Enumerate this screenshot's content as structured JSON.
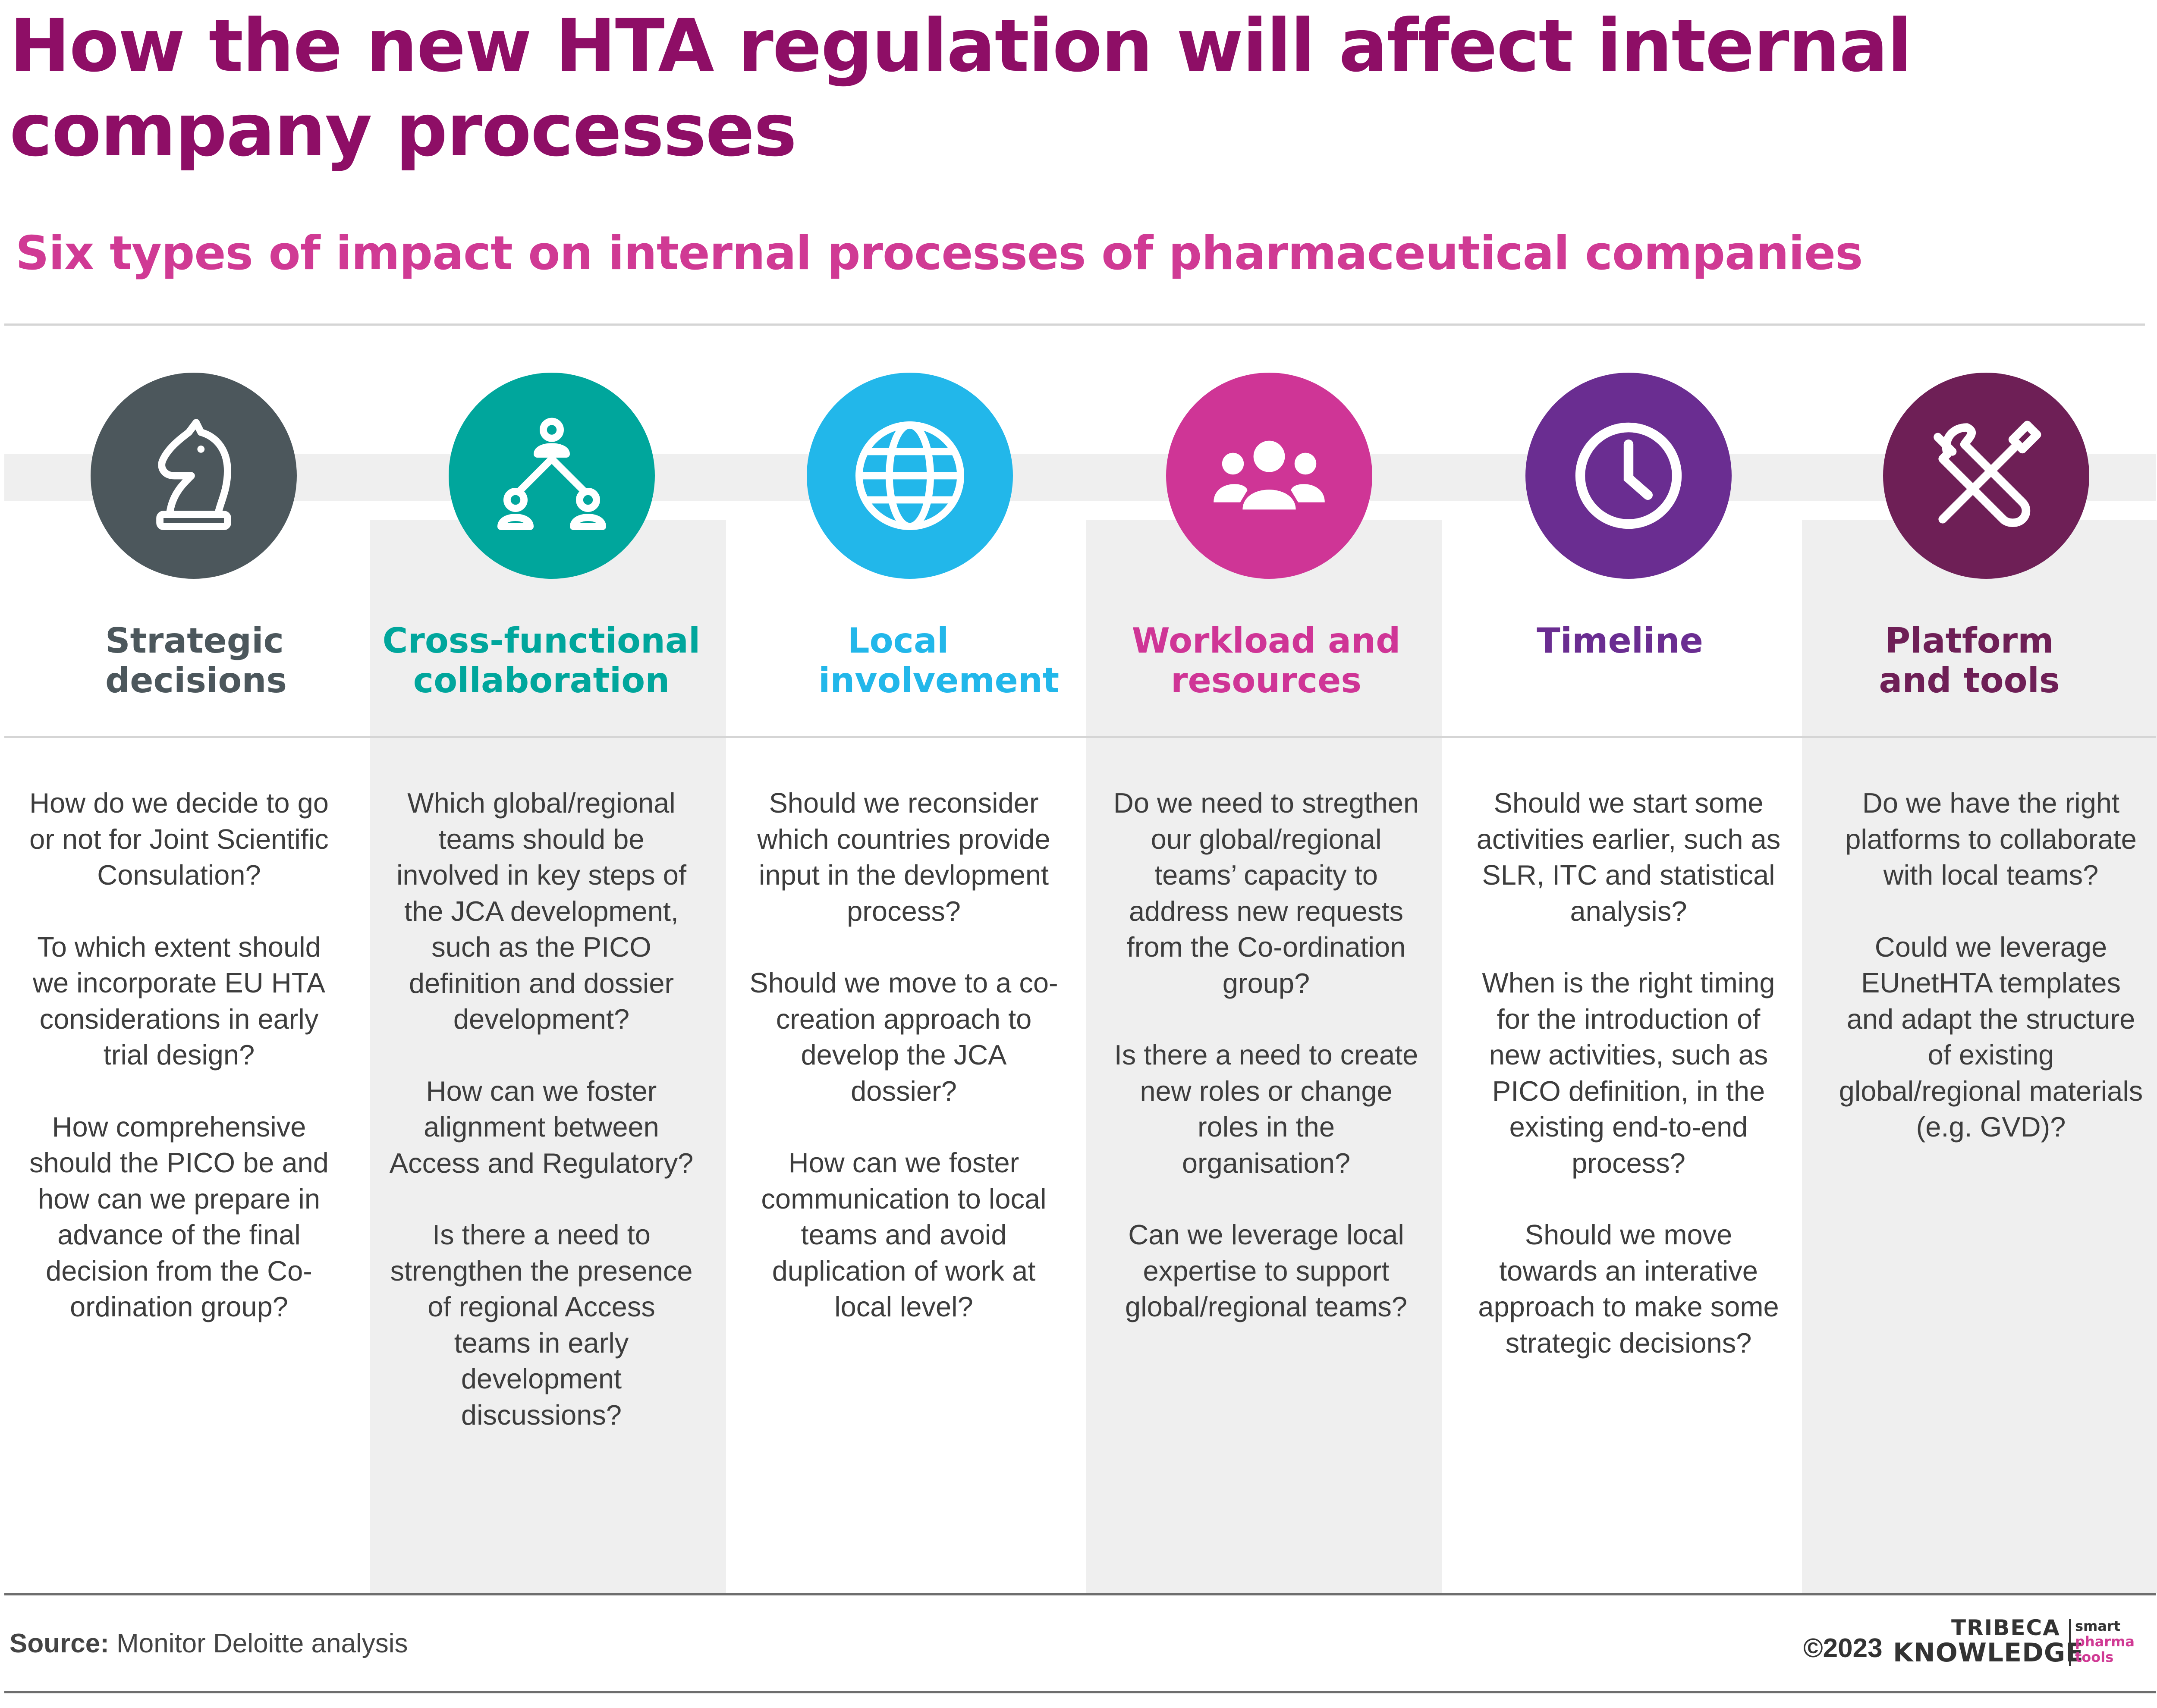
{
  "title": "How the new HTA regulation will affect internal company processes",
  "subtitle": "Six types of impact on internal processes of pharmaceutical companies",
  "columns": [
    {
      "heading": "Strategic decisions",
      "color": "#4c575c",
      "icon": "chess-knight-icon",
      "items": [
        "How do we decide to go or not for Joint Scientific Consulation?",
        "To which extent should we incorporate EU HTA considerations in early trial design?",
        "How comprehensive should the PICO be and how can we prepare in advance of the final decision from the Co-ordination group?"
      ]
    },
    {
      "heading": "Cross-functional collaboration",
      "color": "#00a69c",
      "icon": "org-chart-icon",
      "items": [
        "Which global/regional teams should be involved in key steps of the JCA development, such as the PICO definition and dossier development?",
        "How can we foster alignment between Access and Regulatory?",
        "Is there a need to strengthen the presence of regional Access teams in early development discussions?"
      ]
    },
    {
      "heading": "Local involvement",
      "color": "#22b7ea",
      "icon": "globe-icon",
      "items": [
        "Should we reconsider which countries provide input in the devlopment process?",
        "Should we move to a co-creation approach to develop the JCA dossier?",
        "How can we foster communication to local teams and avoid duplication of work at local level?"
      ]
    },
    {
      "heading": "Workload and resources",
      "color": "#cf3596",
      "icon": "people-group-icon",
      "items": [
        "Do we need to stregthen our global/regional teams’ capacity to address new requests from the Co-ordination group?",
        "Is there a need to create new roles or change roles in the organisation?",
        "Can we leverage local expertise to support global/regional teams?"
      ]
    },
    {
      "heading": "Timeline",
      "color": "#6a2d91",
      "icon": "clock-icon",
      "items": [
        "Should we start some activities earlier, such as SLR, ITC and statistical analysis?",
        "When is the right timing for the introduction of new activities, such as PICO definition, in the existing end-to-end process?",
        "Should we move towards an interative approach to make some strategic decisions?"
      ]
    },
    {
      "heading": "Platform and tools",
      "color": "#6e1f56",
      "icon": "tools-icon",
      "items": [
        "Do we have the right platforms to collaborate with local teams?",
        "Could we leverage EUnetHTA templates and adapt the structure of existing global/regional materials (e.g. GVD)?"
      ]
    }
  ],
  "footer": {
    "source_label": "Source:",
    "source_text": " Monitor Deloitte analysis",
    "copyright": "©2023",
    "logo_line1": "TRIBECA",
    "logo_line2": "KNOWLEDGE",
    "logo_tag1": "smart",
    "logo_tag2": "pharma",
    "logo_tag3": "tools"
  }
}
